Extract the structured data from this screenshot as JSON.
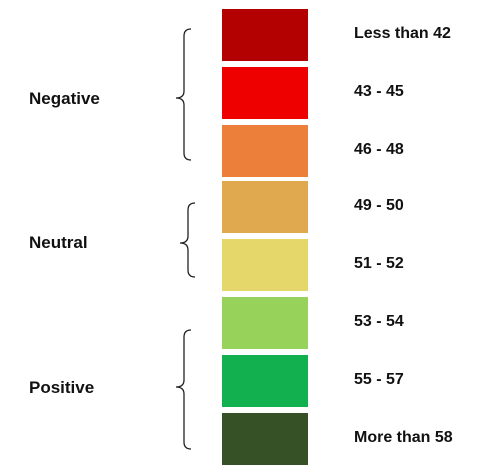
{
  "groups": [
    {
      "label": "Negative"
    },
    {
      "label": "Neutral"
    },
    {
      "label": "Positive"
    }
  ],
  "bands": [
    {
      "label": "Less than 42",
      "color": "#b30000"
    },
    {
      "label": "43 - 45",
      "color": "#ee0000"
    },
    {
      "label": "46 - 48",
      "color": "#ec7f3a"
    },
    {
      "label": "49 - 50",
      "color": "#e0a84f"
    },
    {
      "label": "51 - 52",
      "color": "#e6d76a"
    },
    {
      "label": "53 - 54",
      "color": "#97d35a"
    },
    {
      "label": "55 - 57",
      "color": "#12b04e"
    },
    {
      "label": "More than 58",
      "color": "#365126"
    }
  ]
}
